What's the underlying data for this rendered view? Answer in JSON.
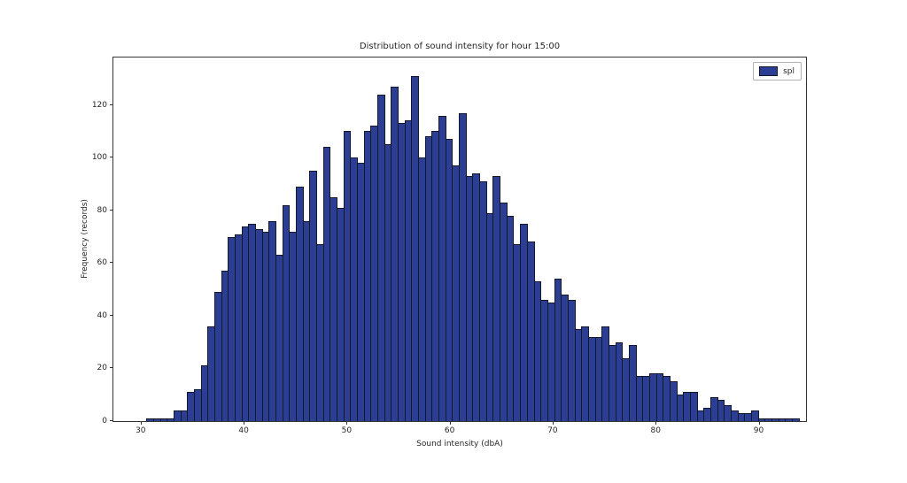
{
  "figure": {
    "background_color": "#ffffff",
    "bar_fill_color": "#2b3e94",
    "bar_edge_color": "#15182b",
    "spine_color": "#343434"
  },
  "legend": {
    "label": "spl",
    "position": "upper right"
  },
  "chart_data": {
    "type": "bar",
    "subtype": "histogram",
    "title": "Distribution of sound intensity for hour 15:00",
    "xlabel": "Sound intensity (dbA)",
    "ylabel": "Frequency (records)",
    "series_name": "spl",
    "bin_start": 30.55,
    "bin_width": 0.66,
    "values": [
      1,
      1,
      1,
      1,
      4,
      4,
      11,
      12,
      21,
      36,
      49,
      57,
      70,
      71,
      74,
      75,
      73,
      72,
      76,
      63,
      82,
      72,
      89,
      76,
      95,
      67,
      104,
      85,
      81,
      110,
      100,
      98,
      110,
      112,
      124,
      105,
      127,
      113,
      114,
      131,
      100,
      108,
      110,
      116,
      107,
      97,
      117,
      93,
      94,
      91,
      79,
      93,
      83,
      78,
      67,
      75,
      68,
      53,
      46,
      45,
      54,
      48,
      46,
      35,
      36,
      32,
      32,
      36,
      29,
      30,
      24,
      29,
      17,
      17,
      18,
      18,
      17,
      15,
      10,
      11,
      11,
      4,
      5,
      9,
      8,
      6,
      4,
      3,
      3,
      4,
      1,
      1,
      1,
      1,
      1,
      1
    ],
    "xticks": [
      30,
      40,
      50,
      60,
      70,
      80,
      90
    ],
    "yticks": [
      0,
      20,
      40,
      60,
      80,
      100,
      120
    ],
    "xlim": [
      27.35,
      94.6
    ],
    "ylim": [
      0,
      138
    ],
    "grid": false,
    "legend_position": "upper right"
  }
}
